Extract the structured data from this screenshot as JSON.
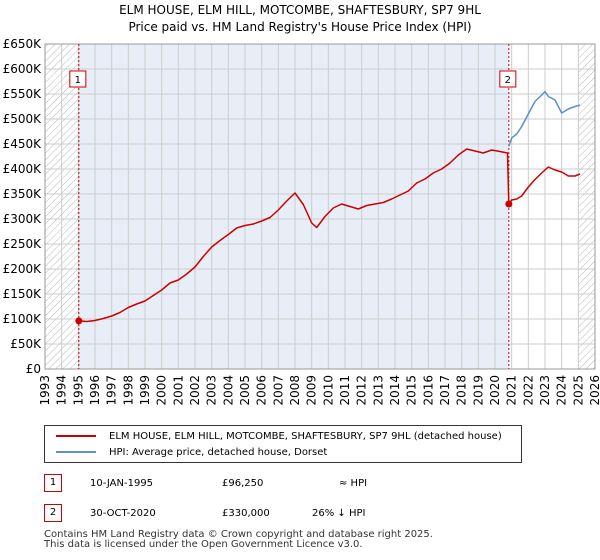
{
  "title_line1": "ELM HOUSE, ELM HILL, MOTCOMBE, SHAFTESBURY, SP7 9HL",
  "title_line2": "Price paid vs. HM Land Registry's House Price Index (HPI)",
  "colors": {
    "property": "#cc0000",
    "hpi": "#5b8fd0",
    "shade": "#e8eef8",
    "grid": "#cccccc"
  },
  "chart_data": {
    "type": "line",
    "title": "Price paid vs. HM Land Registry's House Price Index (HPI)",
    "xlabel": "",
    "ylabel": "",
    "xlim": [
      1993,
      2026
    ],
    "ylim": [
      0,
      650000
    ],
    "x_ticks": [
      "1993",
      "1994",
      "1995",
      "1996",
      "1997",
      "1998",
      "1999",
      "2000",
      "2001",
      "2002",
      "2003",
      "2004",
      "2005",
      "2006",
      "2007",
      "2008",
      "2009",
      "2010",
      "2011",
      "2012",
      "2013",
      "2014",
      "2015",
      "2016",
      "2017",
      "2018",
      "2019",
      "2020",
      "2021",
      "2022",
      "2023",
      "2024",
      "2025",
      "2026"
    ],
    "y_ticks": [
      {
        "value": 0,
        "label": "£0"
      },
      {
        "value": 50000,
        "label": "£50K"
      },
      {
        "value": 100000,
        "label": "£100K"
      },
      {
        "value": 150000,
        "label": "£150K"
      },
      {
        "value": 200000,
        "label": "£200K"
      },
      {
        "value": 250000,
        "label": "£250K"
      },
      {
        "value": 300000,
        "label": "£300K"
      },
      {
        "value": 350000,
        "label": "£350K"
      },
      {
        "value": 400000,
        "label": "£400K"
      },
      {
        "value": 450000,
        "label": "£450K"
      },
      {
        "value": 500000,
        "label": "£500K"
      },
      {
        "value": 550000,
        "label": "£550K"
      },
      {
        "value": 600000,
        "label": "£600K"
      },
      {
        "value": 650000,
        "label": "£650K"
      }
    ],
    "hatched_regions": [
      [
        1993,
        1995.03
      ],
      [
        2025.0,
        2026
      ]
    ],
    "shaded_region": [
      1995.03,
      2020.83
    ],
    "series": [
      {
        "name": "ELM HOUSE, ELM HILL, MOTCOMBE, SHAFTESBURY, SP7 9HL (detached house)",
        "color": "#cc0000",
        "x": [
          1995.03,
          1995.5,
          1996,
          1996.5,
          1997,
          1997.5,
          1998,
          1998.5,
          1999,
          1999.5,
          2000,
          2000.5,
          2001,
          2001.5,
          2002,
          2002.5,
          2003,
          2003.5,
          2004,
          2004.5,
          2005,
          2005.5,
          2006,
          2006.5,
          2007,
          2007.5,
          2008,
          2008.5,
          2009,
          2009.3,
          2009.8,
          2010.3,
          2010.8,
          2011.3,
          2011.8,
          2012.3,
          2012.8,
          2013.3,
          2013.8,
          2014.3,
          2014.8,
          2015.3,
          2015.8,
          2016.3,
          2016.8,
          2017.3,
          2017.8,
          2018.3,
          2018.8,
          2019.3,
          2019.8,
          2020.3,
          2020.75,
          2020.83,
          2021.0,
          2021.3,
          2021.6,
          2022.0,
          2022.4,
          2022.8,
          2023.2,
          2023.6,
          2024.0,
          2024.4,
          2024.8,
          2025.1
        ],
        "values": [
          96250,
          95000,
          97000,
          101000,
          106000,
          113000,
          123000,
          130000,
          136000,
          147000,
          158000,
          172000,
          178000,
          190000,
          204000,
          225000,
          244000,
          257000,
          269000,
          282000,
          287000,
          290000,
          296000,
          303000,
          318000,
          336000,
          352000,
          329000,
          292000,
          283000,
          305000,
          322000,
          330000,
          325000,
          320000,
          327000,
          330000,
          333000,
          340000,
          348000,
          356000,
          372000,
          380000,
          392000,
          400000,
          412000,
          428000,
          440000,
          436000,
          432000,
          438000,
          435000,
          432000,
          330000,
          338000,
          340000,
          346000,
          364000,
          379000,
          392000,
          404000,
          398000,
          394000,
          386000,
          386000,
          390000
        ]
      },
      {
        "name": "HPI: Average price, detached house, Dorset",
        "color": "#5b8fd0",
        "x": [
          2020.83,
          2021.0,
          2021.3,
          2021.6,
          2022.0,
          2022.4,
          2022.8,
          2023.0,
          2023.2,
          2023.6,
          2024.0,
          2024.4,
          2024.8,
          2025.1
        ],
        "values": [
          445000,
          462000,
          470000,
          485000,
          510000,
          535000,
          548000,
          555000,
          545000,
          538000,
          512000,
          520000,
          525000,
          528000
        ]
      }
    ],
    "annotations": [
      {
        "label": "1",
        "x": 1995.03,
        "y": 96250,
        "box_y": 580000
      },
      {
        "label": "2",
        "x": 2020.83,
        "y": 330000,
        "box_y": 580000
      }
    ]
  },
  "legend": {
    "property_label": "ELM HOUSE, ELM HILL, MOTCOMBE, SHAFTESBURY, SP7 9HL (detached house)",
    "hpi_label": "HPI: Average price, detached house, Dorset"
  },
  "sales": [
    {
      "num": "1",
      "date": "10-JAN-1995",
      "price": "£96,250",
      "rel": "≈ HPI"
    },
    {
      "num": "2",
      "date": "30-OCT-2020",
      "price": "£330,000",
      "rel": "26% ↓ HPI"
    }
  ],
  "footer_line1": "Contains HM Land Registry data © Crown copyright and database right 2025.",
  "footer_line2": "This data is licensed under the Open Government Licence v3.0."
}
